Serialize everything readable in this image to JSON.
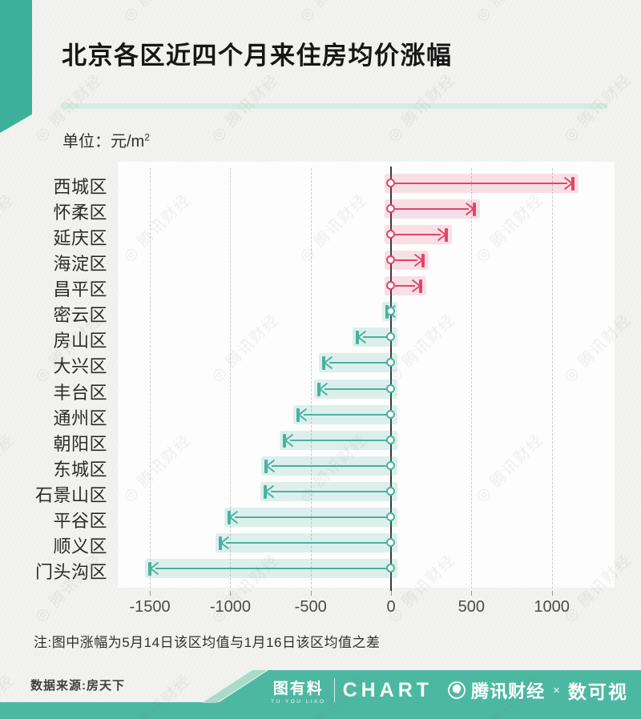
{
  "header": {
    "title": "北京各区近四个月来住房均价涨幅",
    "unit_prefix": "单位：元/m",
    "unit_sup": "2"
  },
  "chart_data": {
    "type": "bar",
    "orientation": "horizontal",
    "title": "北京各区近四个月来住房均价涨幅",
    "unit": "元/m²",
    "categories": [
      "西城区",
      "怀柔区",
      "延庆区",
      "海淀区",
      "昌平区",
      "密云区",
      "房山区",
      "大兴区",
      "丰台区",
      "通州区",
      "朝阳区",
      "东城区",
      "石景山区",
      "平谷区",
      "顺义区",
      "门头沟区"
    ],
    "values": [
      1130,
      520,
      345,
      200,
      185,
      -25,
      -210,
      -420,
      -450,
      -580,
      -665,
      -780,
      -785,
      -1005,
      -1060,
      -1500
    ],
    "xticks": [
      -1500,
      -1000,
      -500,
      0,
      500,
      1000
    ],
    "xlim": [
      -1690,
      1390
    ],
    "grid": "vertical-dashed",
    "legend": "none",
    "marker_style": "arrow-from-zero-with-origin-circle"
  },
  "note": {
    "text": "注:图中涨幅为5月14日该区均值与1月16日该区均值之差"
  },
  "footer": {
    "source_label": "数据来源:房天下",
    "brand_tuyouliao": "图有料",
    "brand_tuyouliao_sub": "TU YOU LIAO",
    "brand_chart": "CHART",
    "brand_tencent": "腾讯财经",
    "brand_x": "×",
    "brand_shukeshi": "数可视"
  },
  "watermark": {
    "icon_glyph": "◎",
    "text": "腾讯财经"
  },
  "colors": {
    "positive": "#e2456a",
    "positive_band": "rgba(226,69,106,0.16)",
    "negative": "#49b2a0",
    "negative_band": "rgba(73,178,160,0.18)",
    "accent_ribbon": "#3eb19c",
    "title_underline": "#d5ece5",
    "footer_teal": "#4db8a2",
    "footer_stripe": "#a9dbc9",
    "zero_line": "#3b3b3b",
    "gridline": "#c9c9c9",
    "background": "#f2f2f0"
  }
}
